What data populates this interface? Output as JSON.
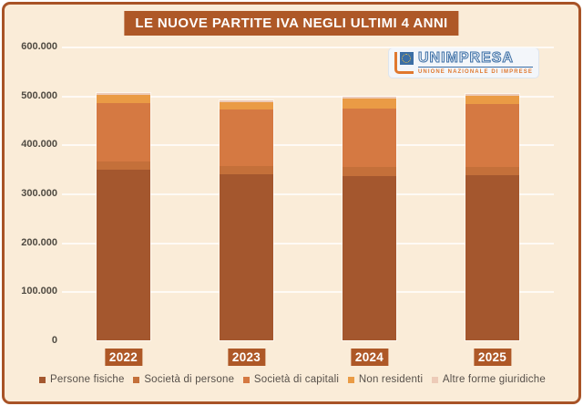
{
  "title": "LE NUOVE PARTITE IVA NEGLI ULTIMI 4 ANNI",
  "logo": {
    "name": "UNIMPRESA",
    "subtitle": "UNIONE NAZIONALE DI IMPRESE"
  },
  "colors": {
    "frame_border": "#A85327",
    "panel_background": "#FAECD8",
    "title_background": "#AE5827",
    "year_label_background": "#AE5827",
    "logo_blue": "#3b6ea5",
    "logo_orange": "#e0782e"
  },
  "chart_data": {
    "type": "bar",
    "stacked": true,
    "title": "LE NUOVE PARTITE IVA NEGLI ULTIMI 4 ANNI",
    "categories": [
      "2022",
      "2023",
      "2024",
      "2025"
    ],
    "series": [
      {
        "name": "Persone fisiche",
        "color": "#A4572E",
        "values": [
          349000,
          340000,
          336000,
          338000
        ]
      },
      {
        "name": "Società di persone",
        "color": "#C4703A",
        "values": [
          17000,
          17000,
          19000,
          17000
        ]
      },
      {
        "name": "Società di capitali",
        "color": "#D57942",
        "values": [
          119000,
          116000,
          120000,
          128000
        ]
      },
      {
        "name": "Non residenti",
        "color": "#EA9B45",
        "values": [
          16000,
          15000,
          21000,
          16000
        ]
      },
      {
        "name": "Altre forme giuridiche",
        "color": "#EDCBB8",
        "values": [
          3000,
          3000,
          3000,
          3000
        ]
      }
    ],
    "ylim": [
      0,
      600000
    ],
    "ytick_labels": [
      "0",
      "100.000",
      "200.000",
      "300.000",
      "400.000",
      "500.000",
      "600.000"
    ],
    "xlabel": "",
    "ylabel": "",
    "grid": true,
    "legend_position": "bottom"
  }
}
